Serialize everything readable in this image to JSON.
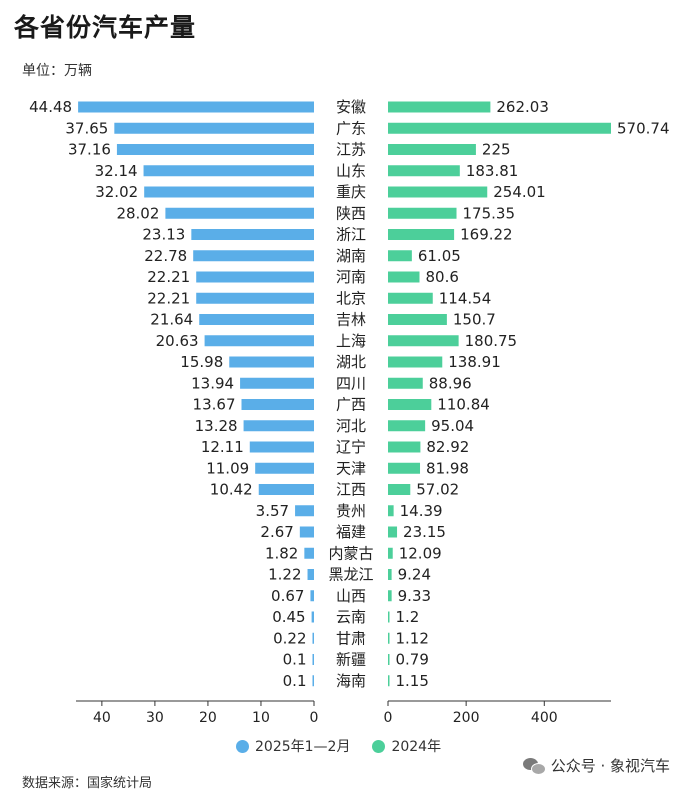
{
  "header": {
    "title": "各省份汽车产量",
    "unit": "单位：万辆"
  },
  "footer": {
    "source": "数据来源：国家统计局",
    "account": "公众号 · 象视汽车"
  },
  "chart_data": {
    "type": "bar",
    "orientation": "horizontal-butterfly",
    "categories": [
      "安徽",
      "广东",
      "江苏",
      "山东",
      "重庆",
      "陕西",
      "浙江",
      "湖南",
      "河南",
      "北京",
      "吉林",
      "上海",
      "湖北",
      "四川",
      "广西",
      "河北",
      "辽宁",
      "天津",
      "江西",
      "贵州",
      "福建",
      "内蒙古",
      "黑龙江",
      "山西",
      "云南",
      "甘肃",
      "新疆",
      "海南"
    ],
    "series": [
      {
        "name": "2025年1—2月",
        "side": "left",
        "color": "#5aaee8",
        "values": [
          44.48,
          37.65,
          37.16,
          32.14,
          32.02,
          28.02,
          23.13,
          22.78,
          22.21,
          22.21,
          21.64,
          20.63,
          15.98,
          13.94,
          13.67,
          13.28,
          12.11,
          11.09,
          10.42,
          3.57,
          2.67,
          1.82,
          1.22,
          0.67,
          0.45,
          0.22,
          0.1,
          0.1
        ],
        "labels": [
          "44.48",
          "37.65",
          "37.16",
          "32.14",
          "32.02",
          "28.02",
          "23.13",
          "22.78",
          "22.21",
          "22.21",
          "21.64",
          "20.63",
          "15.98",
          "13.94",
          "13.67",
          "13.28",
          "12.11",
          "11.09",
          "10.42",
          "3.57",
          "2.67",
          "1.82",
          "1.22",
          "0.67",
          "0.45",
          "0.22",
          "0.1",
          "0.1"
        ],
        "xlim": [
          0,
          44.5
        ],
        "ticks": [
          40,
          30,
          20,
          10,
          0
        ]
      },
      {
        "name": "2024年",
        "side": "right",
        "color": "#4ccf9a",
        "values": [
          262.03,
          570.74,
          225,
          183.81,
          254.01,
          175.35,
          169.22,
          61.05,
          80.6,
          114.54,
          150.7,
          180.75,
          138.91,
          88.96,
          110.84,
          95.04,
          82.92,
          81.98,
          57.02,
          14.39,
          23.15,
          12.09,
          9.24,
          9.33,
          1.2,
          1.12,
          0.79,
          1.15
        ],
        "labels": [
          "262.03",
          "570.74",
          "225",
          "183.81",
          "254.01",
          "175.35",
          "169.22",
          "61.05",
          "80.6",
          "114.54",
          "150.7",
          "180.75",
          "138.91",
          "88.96",
          "110.84",
          "95.04",
          "82.92",
          "81.98",
          "57.02",
          "14.39",
          "23.15",
          "12.09",
          "9.24",
          "9.33",
          "1.2",
          "1.12",
          "0.79",
          "1.15"
        ],
        "xlim": [
          0,
          570.74
        ],
        "ticks": [
          0,
          200,
          400
        ]
      }
    ],
    "legend": "bottom-center",
    "grid": false
  }
}
